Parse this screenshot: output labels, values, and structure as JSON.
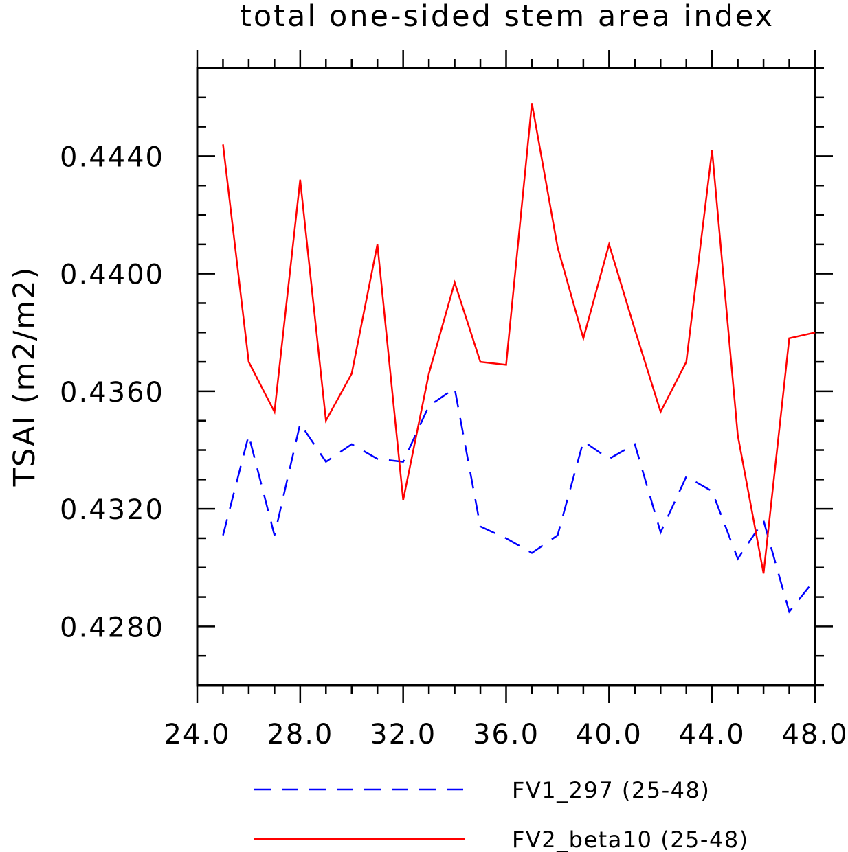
{
  "chart_data": {
    "type": "line",
    "title": "total one-sided stem area index",
    "xlabel": "",
    "ylabel": "TSAI  (m2/m2)",
    "xlim": [
      24.0,
      48.0
    ],
    "ylim": [
      0.426,
      0.447
    ],
    "xticks": [
      24.0,
      28.0,
      32.0,
      36.0,
      40.0,
      44.0,
      48.0
    ],
    "xtick_labels": [
      "24.0",
      "28.0",
      "32.0",
      "36.0",
      "40.0",
      "44.0",
      "48.0"
    ],
    "yticks": [
      0.428,
      0.432,
      0.436,
      0.44,
      0.444
    ],
    "ytick_labels": [
      "0.4280",
      "0.4320",
      "0.4360",
      "0.4400",
      "0.4440"
    ],
    "x": [
      25,
      26,
      27,
      28,
      29,
      30,
      31,
      32,
      33,
      34,
      35,
      36,
      37,
      38,
      39,
      40,
      41,
      42,
      43,
      44,
      45,
      46,
      47,
      48
    ],
    "series": [
      {
        "name": "FV1_297 (25-48)",
        "color": "#0000ff",
        "style": "dashed",
        "values": [
          0.4311,
          0.4345,
          0.4311,
          0.4349,
          0.4336,
          0.4342,
          0.4337,
          0.4336,
          0.4355,
          0.4361,
          0.4314,
          0.431,
          0.4305,
          0.4311,
          0.4343,
          0.4337,
          0.4342,
          0.4312,
          0.4331,
          0.4326,
          0.4303,
          0.4316,
          0.4285,
          0.4296
        ]
      },
      {
        "name": "FV2_beta10 (25-48)",
        "color": "#ff0000",
        "style": "solid",
        "values": [
          0.4444,
          0.437,
          0.4353,
          0.4432,
          0.435,
          0.4366,
          0.441,
          0.4323,
          0.4366,
          0.4397,
          0.437,
          0.4369,
          0.4458,
          0.4409,
          0.4378,
          0.441,
          0.4381,
          0.4353,
          0.437,
          0.4442,
          0.4345,
          0.4298,
          0.4378,
          0.438
        ]
      }
    ],
    "legend_position": "bottom"
  }
}
